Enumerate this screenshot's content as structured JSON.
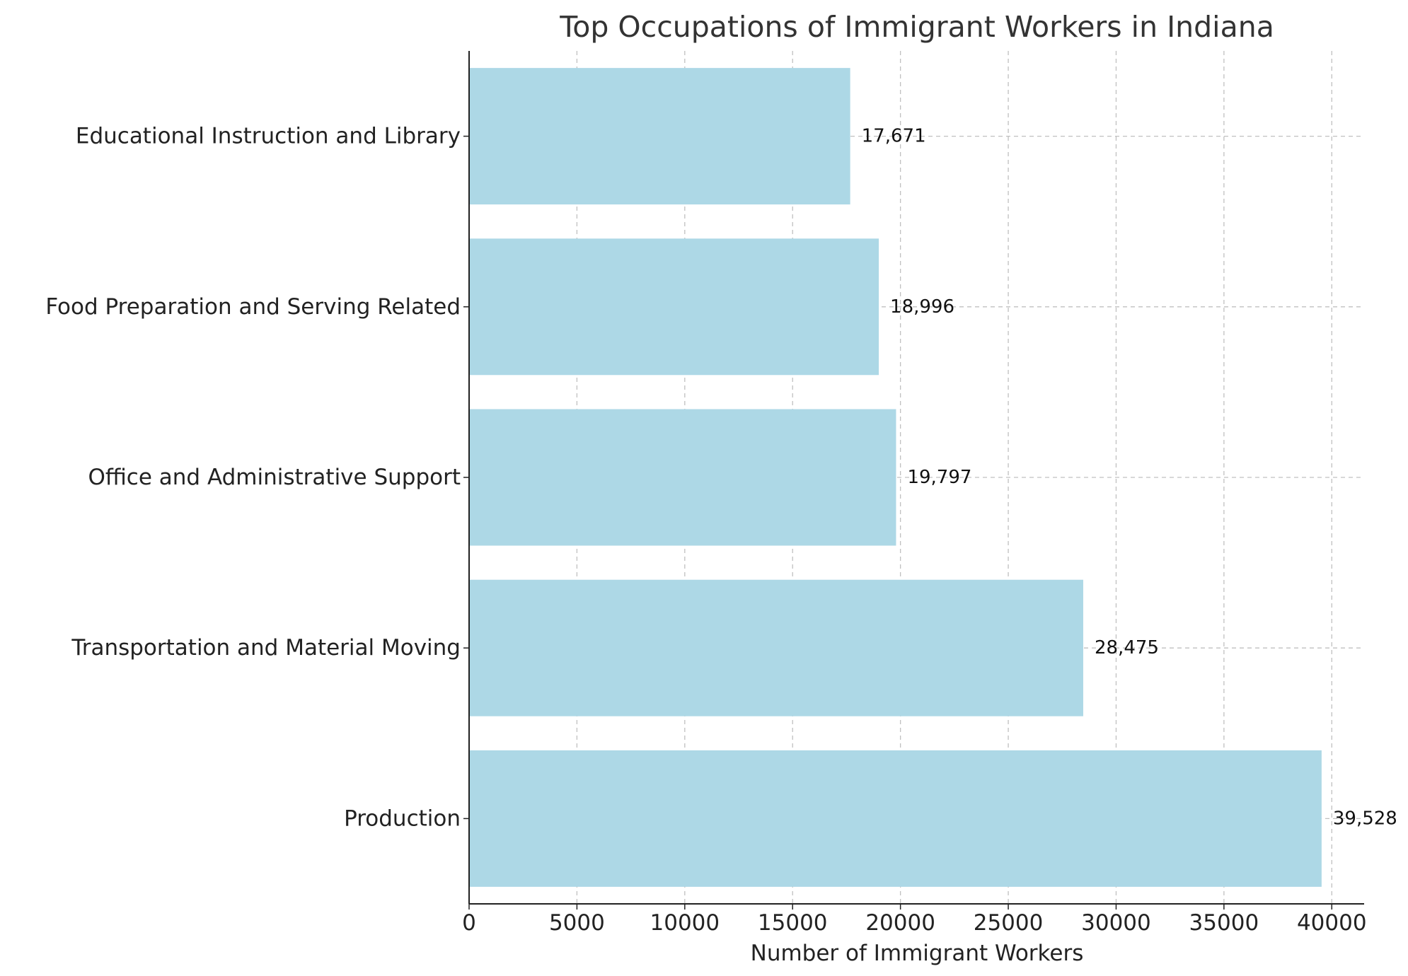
{
  "chart_data": {
    "type": "bar",
    "orientation": "horizontal",
    "title": "Top Occupations of Immigrant Workers in Indiana",
    "xlabel": "Number of Immigrant Workers",
    "ylabel": "",
    "categories": [
      "Production",
      "Transportation and Material Moving",
      "Office and Administrative Support",
      "Food Preparation and Serving Related",
      "Educational Instruction and Library"
    ],
    "values": [
      39528,
      28475,
      19797,
      18996,
      17671
    ],
    "value_labels": [
      "39,528",
      "28,475",
      "19,797",
      "18,996",
      "17,671"
    ],
    "xlim": [
      0,
      41500
    ],
    "xticks": [
      0,
      5000,
      10000,
      15000,
      20000,
      25000,
      30000,
      35000,
      40000
    ],
    "xtick_labels": [
      "0",
      "5000",
      "10000",
      "15000",
      "20000",
      "25000",
      "30000",
      "35000",
      "40000"
    ],
    "grid": true,
    "bar_color": "#add8e6"
  }
}
